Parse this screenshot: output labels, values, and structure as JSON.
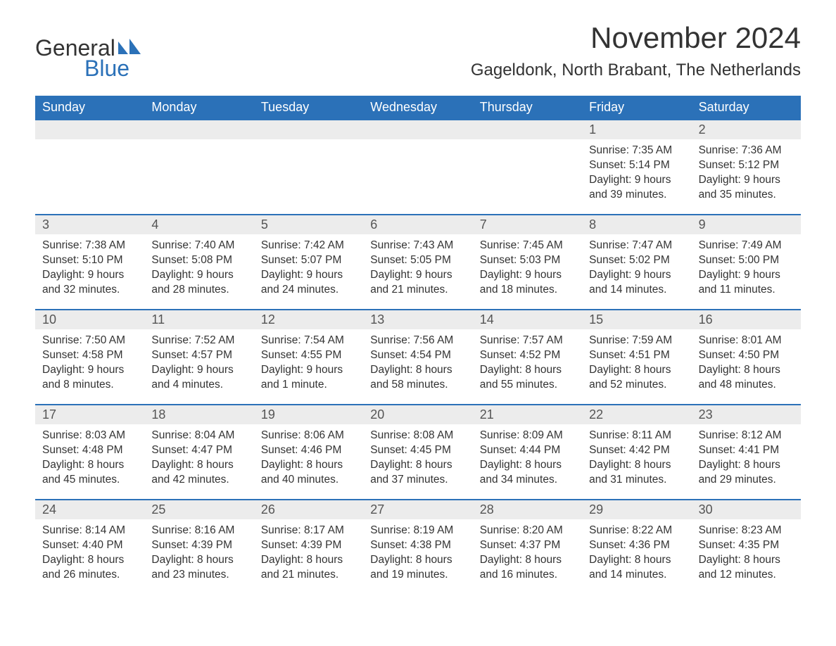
{
  "logo": {
    "text_general": "General",
    "text_blue": "Blue",
    "icon_color": "#2b71b8"
  },
  "header": {
    "month_title": "November 2024",
    "location": "Gageldonk, North Brabant, The Netherlands"
  },
  "colors": {
    "header_bg": "#2b71b8",
    "header_text": "#ffffff",
    "daynum_bg": "#ececec",
    "body_text": "#333333",
    "border": "#2b71b8"
  },
  "typography": {
    "month_title_fontsize": 42,
    "location_fontsize": 24,
    "day_header_fontsize": 18,
    "day_num_fontsize": 18,
    "body_fontsize": 15.5,
    "logo_fontsize": 32
  },
  "day_labels": [
    "Sunday",
    "Monday",
    "Tuesday",
    "Wednesday",
    "Thursday",
    "Friday",
    "Saturday"
  ],
  "weeks": [
    [
      {
        "empty": true
      },
      {
        "empty": true
      },
      {
        "empty": true
      },
      {
        "empty": true
      },
      {
        "empty": true
      },
      {
        "num": "1",
        "sunrise": "Sunrise: 7:35 AM",
        "sunset": "Sunset: 5:14 PM",
        "daylight1": "Daylight: 9 hours",
        "daylight2": "and 39 minutes."
      },
      {
        "num": "2",
        "sunrise": "Sunrise: 7:36 AM",
        "sunset": "Sunset: 5:12 PM",
        "daylight1": "Daylight: 9 hours",
        "daylight2": "and 35 minutes."
      }
    ],
    [
      {
        "num": "3",
        "sunrise": "Sunrise: 7:38 AM",
        "sunset": "Sunset: 5:10 PM",
        "daylight1": "Daylight: 9 hours",
        "daylight2": "and 32 minutes."
      },
      {
        "num": "4",
        "sunrise": "Sunrise: 7:40 AM",
        "sunset": "Sunset: 5:08 PM",
        "daylight1": "Daylight: 9 hours",
        "daylight2": "and 28 minutes."
      },
      {
        "num": "5",
        "sunrise": "Sunrise: 7:42 AM",
        "sunset": "Sunset: 5:07 PM",
        "daylight1": "Daylight: 9 hours",
        "daylight2": "and 24 minutes."
      },
      {
        "num": "6",
        "sunrise": "Sunrise: 7:43 AM",
        "sunset": "Sunset: 5:05 PM",
        "daylight1": "Daylight: 9 hours",
        "daylight2": "and 21 minutes."
      },
      {
        "num": "7",
        "sunrise": "Sunrise: 7:45 AM",
        "sunset": "Sunset: 5:03 PM",
        "daylight1": "Daylight: 9 hours",
        "daylight2": "and 18 minutes."
      },
      {
        "num": "8",
        "sunrise": "Sunrise: 7:47 AM",
        "sunset": "Sunset: 5:02 PM",
        "daylight1": "Daylight: 9 hours",
        "daylight2": "and 14 minutes."
      },
      {
        "num": "9",
        "sunrise": "Sunrise: 7:49 AM",
        "sunset": "Sunset: 5:00 PM",
        "daylight1": "Daylight: 9 hours",
        "daylight2": "and 11 minutes."
      }
    ],
    [
      {
        "num": "10",
        "sunrise": "Sunrise: 7:50 AM",
        "sunset": "Sunset: 4:58 PM",
        "daylight1": "Daylight: 9 hours",
        "daylight2": "and 8 minutes."
      },
      {
        "num": "11",
        "sunrise": "Sunrise: 7:52 AM",
        "sunset": "Sunset: 4:57 PM",
        "daylight1": "Daylight: 9 hours",
        "daylight2": "and 4 minutes."
      },
      {
        "num": "12",
        "sunrise": "Sunrise: 7:54 AM",
        "sunset": "Sunset: 4:55 PM",
        "daylight1": "Daylight: 9 hours",
        "daylight2": "and 1 minute."
      },
      {
        "num": "13",
        "sunrise": "Sunrise: 7:56 AM",
        "sunset": "Sunset: 4:54 PM",
        "daylight1": "Daylight: 8 hours",
        "daylight2": "and 58 minutes."
      },
      {
        "num": "14",
        "sunrise": "Sunrise: 7:57 AM",
        "sunset": "Sunset: 4:52 PM",
        "daylight1": "Daylight: 8 hours",
        "daylight2": "and 55 minutes."
      },
      {
        "num": "15",
        "sunrise": "Sunrise: 7:59 AM",
        "sunset": "Sunset: 4:51 PM",
        "daylight1": "Daylight: 8 hours",
        "daylight2": "and 52 minutes."
      },
      {
        "num": "16",
        "sunrise": "Sunrise: 8:01 AM",
        "sunset": "Sunset: 4:50 PM",
        "daylight1": "Daylight: 8 hours",
        "daylight2": "and 48 minutes."
      }
    ],
    [
      {
        "num": "17",
        "sunrise": "Sunrise: 8:03 AM",
        "sunset": "Sunset: 4:48 PM",
        "daylight1": "Daylight: 8 hours",
        "daylight2": "and 45 minutes."
      },
      {
        "num": "18",
        "sunrise": "Sunrise: 8:04 AM",
        "sunset": "Sunset: 4:47 PM",
        "daylight1": "Daylight: 8 hours",
        "daylight2": "and 42 minutes."
      },
      {
        "num": "19",
        "sunrise": "Sunrise: 8:06 AM",
        "sunset": "Sunset: 4:46 PM",
        "daylight1": "Daylight: 8 hours",
        "daylight2": "and 40 minutes."
      },
      {
        "num": "20",
        "sunrise": "Sunrise: 8:08 AM",
        "sunset": "Sunset: 4:45 PM",
        "daylight1": "Daylight: 8 hours",
        "daylight2": "and 37 minutes."
      },
      {
        "num": "21",
        "sunrise": "Sunrise: 8:09 AM",
        "sunset": "Sunset: 4:44 PM",
        "daylight1": "Daylight: 8 hours",
        "daylight2": "and 34 minutes."
      },
      {
        "num": "22",
        "sunrise": "Sunrise: 8:11 AM",
        "sunset": "Sunset: 4:42 PM",
        "daylight1": "Daylight: 8 hours",
        "daylight2": "and 31 minutes."
      },
      {
        "num": "23",
        "sunrise": "Sunrise: 8:12 AM",
        "sunset": "Sunset: 4:41 PM",
        "daylight1": "Daylight: 8 hours",
        "daylight2": "and 29 minutes."
      }
    ],
    [
      {
        "num": "24",
        "sunrise": "Sunrise: 8:14 AM",
        "sunset": "Sunset: 4:40 PM",
        "daylight1": "Daylight: 8 hours",
        "daylight2": "and 26 minutes."
      },
      {
        "num": "25",
        "sunrise": "Sunrise: 8:16 AM",
        "sunset": "Sunset: 4:39 PM",
        "daylight1": "Daylight: 8 hours",
        "daylight2": "and 23 minutes."
      },
      {
        "num": "26",
        "sunrise": "Sunrise: 8:17 AM",
        "sunset": "Sunset: 4:39 PM",
        "daylight1": "Daylight: 8 hours",
        "daylight2": "and 21 minutes."
      },
      {
        "num": "27",
        "sunrise": "Sunrise: 8:19 AM",
        "sunset": "Sunset: 4:38 PM",
        "daylight1": "Daylight: 8 hours",
        "daylight2": "and 19 minutes."
      },
      {
        "num": "28",
        "sunrise": "Sunrise: 8:20 AM",
        "sunset": "Sunset: 4:37 PM",
        "daylight1": "Daylight: 8 hours",
        "daylight2": "and 16 minutes."
      },
      {
        "num": "29",
        "sunrise": "Sunrise: 8:22 AM",
        "sunset": "Sunset: 4:36 PM",
        "daylight1": "Daylight: 8 hours",
        "daylight2": "and 14 minutes."
      },
      {
        "num": "30",
        "sunrise": "Sunrise: 8:23 AM",
        "sunset": "Sunset: 4:35 PM",
        "daylight1": "Daylight: 8 hours",
        "daylight2": "and 12 minutes."
      }
    ]
  ]
}
